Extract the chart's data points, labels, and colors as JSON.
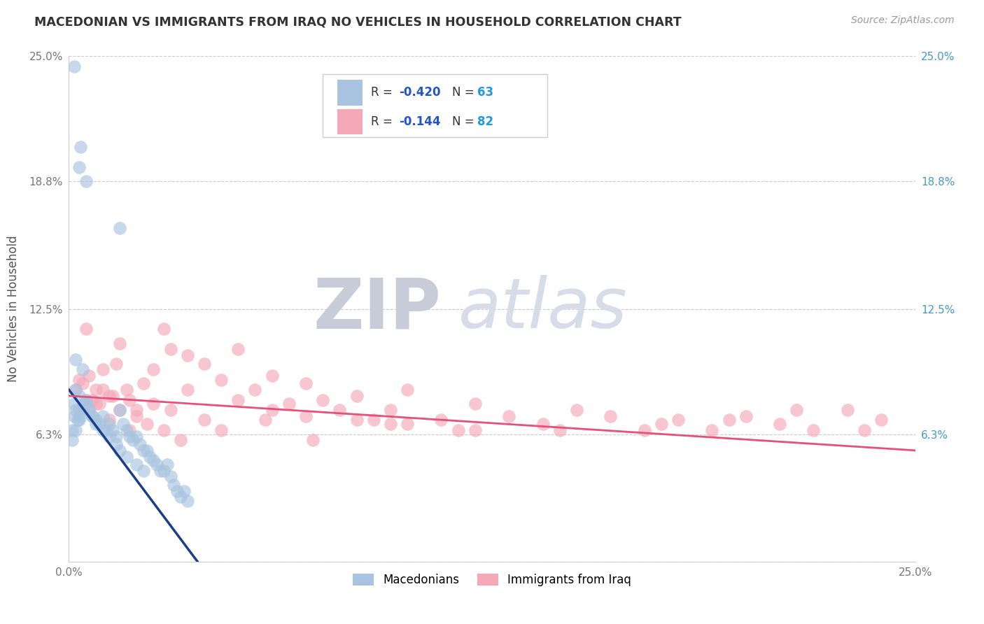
{
  "title": "MACEDONIAN VS IMMIGRANTS FROM IRAQ NO VEHICLES IN HOUSEHOLD CORRELATION CHART",
  "source_text": "Source: ZipAtlas.com",
  "ylabel": "No Vehicles in Household",
  "xlim": [
    0.0,
    25.0
  ],
  "ylim": [
    0.0,
    25.0
  ],
  "ytick_vals": [
    0.0,
    6.3,
    12.5,
    18.8,
    25.0
  ],
  "ytick_labels_left": [
    "",
    "6.3%",
    "12.5%",
    "18.8%",
    "25.0%"
  ],
  "ytick_labels_right": [
    "",
    "6.3%",
    "12.5%",
    "18.8%",
    "25.0%"
  ],
  "grid_color": "#cccccc",
  "background_color": "#ffffff",
  "blue_color": "#a8c4e0",
  "blue_line_color": "#1a3e8a",
  "pink_color": "#f4a8b8",
  "pink_line_color": "#e8507a",
  "r_text_color": "#2255cc",
  "n_text_color": "#2299dd",
  "macedonian_x": [
    0.15,
    0.35,
    1.5,
    0.3,
    0.5,
    0.2,
    0.4,
    0.2,
    0.15,
    0.25,
    0.1,
    0.2,
    0.3,
    0.15,
    0.4,
    0.5,
    0.6,
    0.7,
    0.8,
    0.9,
    1.0,
    1.1,
    1.2,
    1.3,
    1.4,
    1.5,
    1.6,
    1.7,
    1.8,
    1.9,
    2.0,
    2.1,
    2.2,
    2.3,
    2.4,
    2.5,
    2.6,
    2.7,
    2.8,
    2.9,
    3.0,
    3.1,
    3.2,
    3.3,
    3.4,
    3.5,
    0.1,
    0.2,
    0.3,
    0.35,
    0.4,
    0.45,
    0.5,
    0.6,
    0.7,
    0.8,
    1.0,
    1.2,
    1.4,
    1.5,
    1.7,
    2.0,
    2.2
  ],
  "macedonian_y": [
    24.5,
    20.5,
    16.5,
    19.5,
    18.8,
    10.0,
    9.5,
    7.5,
    7.2,
    7.0,
    6.5,
    8.5,
    8.2,
    7.8,
    7.6,
    7.8,
    7.5,
    7.2,
    7.0,
    6.8,
    7.2,
    6.5,
    6.8,
    6.5,
    6.2,
    7.5,
    6.8,
    6.5,
    6.2,
    6.0,
    6.2,
    5.8,
    5.5,
    5.5,
    5.2,
    5.0,
    4.8,
    4.5,
    4.5,
    4.8,
    4.2,
    3.8,
    3.5,
    3.2,
    3.5,
    3.0,
    6.0,
    6.5,
    7.0,
    7.2,
    7.5,
    7.8,
    8.0,
    7.5,
    7.2,
    6.8,
    6.5,
    6.2,
    5.8,
    5.5,
    5.2,
    4.8,
    4.5
  ],
  "iraq_x": [
    0.2,
    0.3,
    0.4,
    0.5,
    0.6,
    0.7,
    0.8,
    0.9,
    1.0,
    1.2,
    1.4,
    1.5,
    1.7,
    2.0,
    2.2,
    2.5,
    2.8,
    3.0,
    3.5,
    4.0,
    4.5,
    5.0,
    5.5,
    6.0,
    6.5,
    7.0,
    7.5,
    8.0,
    8.5,
    9.0,
    9.5,
    10.0,
    11.0,
    12.0,
    13.0,
    14.0,
    15.0,
    16.0,
    17.0,
    18.0,
    19.0,
    20.0,
    21.0,
    22.0,
    23.0,
    24.0,
    0.3,
    0.5,
    0.8,
    1.0,
    1.3,
    1.5,
    1.8,
    2.0,
    2.5,
    3.0,
    3.5,
    4.0,
    5.0,
    6.0,
    7.0,
    8.5,
    10.0,
    12.0,
    14.5,
    17.5,
    19.5,
    21.5,
    23.5,
    1.2,
    1.8,
    2.3,
    2.8,
    3.3,
    4.5,
    5.8,
    7.2,
    9.5,
    11.5
  ],
  "iraq_y": [
    8.5,
    9.0,
    8.8,
    11.5,
    9.2,
    8.0,
    8.5,
    7.8,
    9.5,
    8.2,
    9.8,
    10.8,
    8.5,
    7.5,
    8.8,
    9.5,
    11.5,
    10.5,
    10.2,
    9.8,
    9.0,
    10.5,
    8.5,
    9.2,
    7.8,
    8.8,
    8.0,
    7.5,
    8.2,
    7.0,
    7.5,
    8.5,
    7.0,
    7.8,
    7.2,
    6.8,
    7.5,
    7.2,
    6.5,
    7.0,
    6.5,
    7.2,
    6.8,
    6.5,
    7.5,
    7.0,
    7.5,
    8.0,
    7.8,
    8.5,
    8.2,
    7.5,
    8.0,
    7.2,
    7.8,
    7.5,
    8.5,
    7.0,
    8.0,
    7.5,
    7.2,
    7.0,
    6.8,
    6.5,
    6.5,
    6.8,
    7.0,
    7.5,
    6.5,
    7.0,
    6.5,
    6.8,
    6.5,
    6.0,
    6.5,
    7.0,
    6.0,
    6.8,
    6.5
  ],
  "mac_trend_x0": 0.0,
  "mac_trend_y0": 8.5,
  "mac_trend_x1": 3.8,
  "mac_trend_y1": 0.0,
  "iraq_trend_x0": 0.0,
  "iraq_trend_y0": 8.2,
  "iraq_trend_x1": 25.0,
  "iraq_trend_y1": 5.5,
  "watermark_zip": "ZIP",
  "watermark_atlas": "atlas",
  "watermark_color": "#d8dce8"
}
